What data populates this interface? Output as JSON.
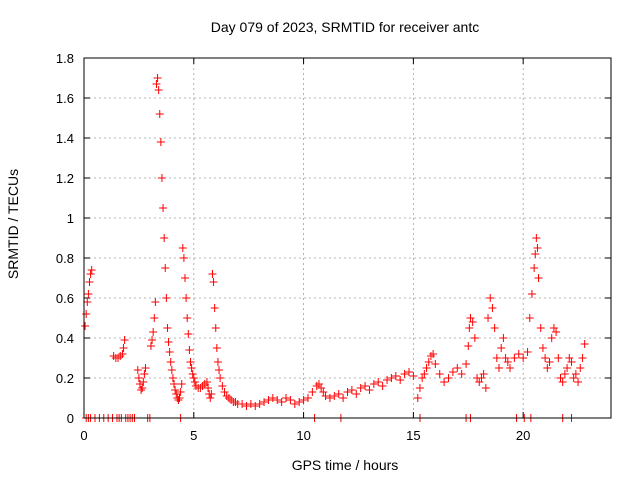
{
  "chart_data": {
    "type": "scatter",
    "title": "Day 079 of 2023, SRMTID for receiver antc",
    "xlabel": "GPS time / hours",
    "ylabel": "SRMTID / TECUs",
    "xlim": [
      0,
      24
    ],
    "ylim": [
      0,
      1.8
    ],
    "x_ticks": [
      0,
      5,
      10,
      15,
      20
    ],
    "x_tick_labels": [
      "0",
      "5",
      "10",
      "15",
      "20"
    ],
    "y_ticks": [
      0,
      0.2,
      0.4,
      0.6,
      0.8,
      1,
      1.2,
      1.4,
      1.6,
      1.8
    ],
    "y_tick_labels": [
      "0",
      "0.2",
      "0.4",
      "0.6",
      "0.8",
      "1",
      "1.2",
      "1.4",
      "1.6",
      "1.8"
    ],
    "grid": true,
    "marker": "plus",
    "colors": {
      "series": "#ff0000",
      "grid": "#a0a0a0",
      "axis": "#000000"
    },
    "series": [
      {
        "name": "SRMTID",
        "points": [
          [
            0.05,
            0.46
          ],
          [
            0.1,
            0.52
          ],
          [
            0.15,
            0.58
          ],
          [
            0.2,
            0.62
          ],
          [
            0.25,
            0.68
          ],
          [
            0.3,
            0.72
          ],
          [
            0.35,
            0.74
          ],
          [
            1.35,
            0.31
          ],
          [
            1.45,
            0.3
          ],
          [
            1.55,
            0.3
          ],
          [
            1.65,
            0.31
          ],
          [
            1.75,
            0.32
          ],
          [
            1.8,
            0.35
          ],
          [
            1.85,
            0.39
          ],
          [
            2.45,
            0.24
          ],
          [
            2.5,
            0.2
          ],
          [
            2.55,
            0.17
          ],
          [
            2.6,
            0.14
          ],
          [
            2.65,
            0.15
          ],
          [
            2.7,
            0.18
          ],
          [
            2.75,
            0.22
          ],
          [
            2.8,
            0.25
          ],
          [
            3.05,
            0.36
          ],
          [
            3.1,
            0.39
          ],
          [
            3.15,
            0.43
          ],
          [
            3.2,
            0.5
          ],
          [
            3.25,
            0.58
          ],
          [
            3.3,
            1.67
          ],
          [
            3.35,
            1.7
          ],
          [
            3.4,
            1.64
          ],
          [
            3.45,
            1.52
          ],
          [
            3.5,
            1.38
          ],
          [
            3.55,
            1.2
          ],
          [
            3.6,
            1.05
          ],
          [
            3.65,
            0.9
          ],
          [
            3.7,
            0.75
          ],
          [
            3.75,
            0.6
          ],
          [
            3.8,
            0.45
          ],
          [
            3.85,
            0.38
          ],
          [
            3.9,
            0.33
          ],
          [
            3.95,
            0.28
          ],
          [
            4.0,
            0.24
          ],
          [
            4.05,
            0.2
          ],
          [
            4.1,
            0.17
          ],
          [
            4.15,
            0.14
          ],
          [
            4.2,
            0.12
          ],
          [
            4.25,
            0.1
          ],
          [
            4.3,
            0.09
          ],
          [
            4.35,
            0.1
          ],
          [
            4.4,
            0.13
          ],
          [
            4.45,
            0.17
          ],
          [
            4.5,
            0.85
          ],
          [
            4.55,
            0.8
          ],
          [
            4.6,
            0.7
          ],
          [
            4.65,
            0.6
          ],
          [
            4.7,
            0.5
          ],
          [
            4.75,
            0.42
          ],
          [
            4.8,
            0.34
          ],
          [
            4.85,
            0.28
          ],
          [
            4.9,
            0.25
          ],
          [
            4.95,
            0.22
          ],
          [
            5.0,
            0.2
          ],
          [
            5.05,
            0.18
          ],
          [
            5.1,
            0.16
          ],
          [
            5.2,
            0.15
          ],
          [
            5.3,
            0.15
          ],
          [
            5.4,
            0.16
          ],
          [
            5.5,
            0.17
          ],
          [
            5.6,
            0.18
          ],
          [
            5.65,
            0.15
          ],
          [
            5.7,
            0.12
          ],
          [
            5.75,
            0.1
          ],
          [
            5.8,
            0.12
          ],
          [
            5.85,
            0.72
          ],
          [
            5.9,
            0.68
          ],
          [
            5.95,
            0.55
          ],
          [
            6.0,
            0.45
          ],
          [
            6.05,
            0.35
          ],
          [
            6.1,
            0.28
          ],
          [
            6.15,
            0.24
          ],
          [
            6.2,
            0.2
          ],
          [
            6.3,
            0.16
          ],
          [
            6.4,
            0.13
          ],
          [
            6.5,
            0.11
          ],
          [
            6.6,
            0.1
          ],
          [
            6.7,
            0.09
          ],
          [
            6.8,
            0.08
          ],
          [
            6.9,
            0.08
          ],
          [
            7.0,
            0.07
          ],
          [
            7.2,
            0.07
          ],
          [
            7.4,
            0.06
          ],
          [
            7.6,
            0.07
          ],
          [
            7.8,
            0.06
          ],
          [
            8.0,
            0.07
          ],
          [
            8.2,
            0.08
          ],
          [
            8.4,
            0.09
          ],
          [
            8.6,
            0.1
          ],
          [
            8.8,
            0.09
          ],
          [
            9.0,
            0.08
          ],
          [
            9.2,
            0.1
          ],
          [
            9.4,
            0.09
          ],
          [
            9.6,
            0.07
          ],
          [
            9.8,
            0.08
          ],
          [
            10.0,
            0.09
          ],
          [
            10.2,
            0.1
          ],
          [
            10.4,
            0.13
          ],
          [
            10.6,
            0.16
          ],
          [
            10.7,
            0.17
          ],
          [
            10.8,
            0.15
          ],
          [
            10.9,
            0.13
          ],
          [
            11.0,
            0.11
          ],
          [
            11.2,
            0.1
          ],
          [
            11.4,
            0.11
          ],
          [
            11.6,
            0.12
          ],
          [
            11.8,
            0.1
          ],
          [
            12.0,
            0.13
          ],
          [
            12.2,
            0.14
          ],
          [
            12.4,
            0.12
          ],
          [
            12.6,
            0.15
          ],
          [
            12.8,
            0.16
          ],
          [
            13.0,
            0.14
          ],
          [
            13.2,
            0.17
          ],
          [
            13.4,
            0.18
          ],
          [
            13.6,
            0.16
          ],
          [
            13.8,
            0.19
          ],
          [
            14.0,
            0.2
          ],
          [
            14.2,
            0.21
          ],
          [
            14.4,
            0.19
          ],
          [
            14.6,
            0.22
          ],
          [
            14.8,
            0.23
          ],
          [
            15.0,
            0.21
          ],
          [
            15.2,
            0.1
          ],
          [
            15.3,
            0.15
          ],
          [
            15.4,
            0.2
          ],
          [
            15.5,
            0.22
          ],
          [
            15.6,
            0.25
          ],
          [
            15.7,
            0.28
          ],
          [
            15.8,
            0.31
          ],
          [
            15.9,
            0.32
          ],
          [
            16.0,
            0.27
          ],
          [
            16.2,
            0.22
          ],
          [
            16.4,
            0.18
          ],
          [
            16.6,
            0.2
          ],
          [
            16.8,
            0.23
          ],
          [
            17.0,
            0.25
          ],
          [
            17.2,
            0.22
          ],
          [
            17.4,
            0.27
          ],
          [
            17.5,
            0.36
          ],
          [
            17.55,
            0.45
          ],
          [
            17.6,
            0.5
          ],
          [
            17.7,
            0.48
          ],
          [
            17.8,
            0.4
          ],
          [
            17.9,
            0.2
          ],
          [
            18.0,
            0.18
          ],
          [
            18.1,
            0.2
          ],
          [
            18.2,
            0.22
          ],
          [
            18.3,
            0.15
          ],
          [
            18.4,
            0.5
          ],
          [
            18.5,
            0.6
          ],
          [
            18.6,
            0.55
          ],
          [
            18.7,
            0.45
          ],
          [
            18.8,
            0.3
          ],
          [
            18.9,
            0.25
          ],
          [
            19.0,
            0.35
          ],
          [
            19.1,
            0.4
          ],
          [
            19.2,
            0.3
          ],
          [
            19.3,
            0.28
          ],
          [
            19.4,
            0.25
          ],
          [
            19.6,
            0.3
          ],
          [
            19.8,
            0.32
          ],
          [
            20.0,
            0.3
          ],
          [
            20.2,
            0.33
          ],
          [
            20.3,
            0.5
          ],
          [
            20.4,
            0.62
          ],
          [
            20.5,
            0.75
          ],
          [
            20.55,
            0.82
          ],
          [
            20.6,
            0.9
          ],
          [
            20.65,
            0.85
          ],
          [
            20.7,
            0.7
          ],
          [
            20.8,
            0.45
          ],
          [
            20.9,
            0.35
          ],
          [
            21.0,
            0.3
          ],
          [
            21.1,
            0.25
          ],
          [
            21.2,
            0.28
          ],
          [
            21.3,
            0.4
          ],
          [
            21.4,
            0.45
          ],
          [
            21.5,
            0.43
          ],
          [
            21.6,
            0.3
          ],
          [
            21.7,
            0.2
          ],
          [
            21.8,
            0.18
          ],
          [
            21.9,
            0.22
          ],
          [
            22.0,
            0.25
          ],
          [
            22.1,
            0.3
          ],
          [
            22.2,
            0.28
          ],
          [
            22.3,
            0.2
          ],
          [
            22.4,
            0.22
          ],
          [
            22.5,
            0.18
          ],
          [
            22.6,
            0.25
          ],
          [
            22.7,
            0.3
          ],
          [
            22.8,
            0.37
          ],
          [
            0.1,
            0
          ],
          [
            0.2,
            0
          ],
          [
            0.3,
            0
          ],
          [
            0.5,
            0
          ],
          [
            0.7,
            0
          ],
          [
            0.9,
            0
          ],
          [
            1.1,
            0
          ],
          [
            1.3,
            0
          ],
          [
            1.5,
            0
          ],
          [
            1.6,
            0
          ],
          [
            1.7,
            0
          ],
          [
            1.9,
            0
          ],
          [
            2.0,
            0
          ],
          [
            2.1,
            0
          ],
          [
            2.2,
            0
          ],
          [
            2.3,
            0
          ],
          [
            2.9,
            0
          ],
          [
            3.0,
            0
          ],
          [
            4.4,
            0
          ],
          [
            10.5,
            0
          ],
          [
            11.7,
            0
          ],
          [
            15.3,
            0
          ],
          [
            17.4,
            0
          ],
          [
            17.6,
            0
          ],
          [
            19.7,
            0
          ],
          [
            20.05,
            0
          ],
          [
            20.35,
            0
          ],
          [
            21.8,
            0
          ],
          [
            22.2,
            0
          ]
        ]
      }
    ]
  }
}
